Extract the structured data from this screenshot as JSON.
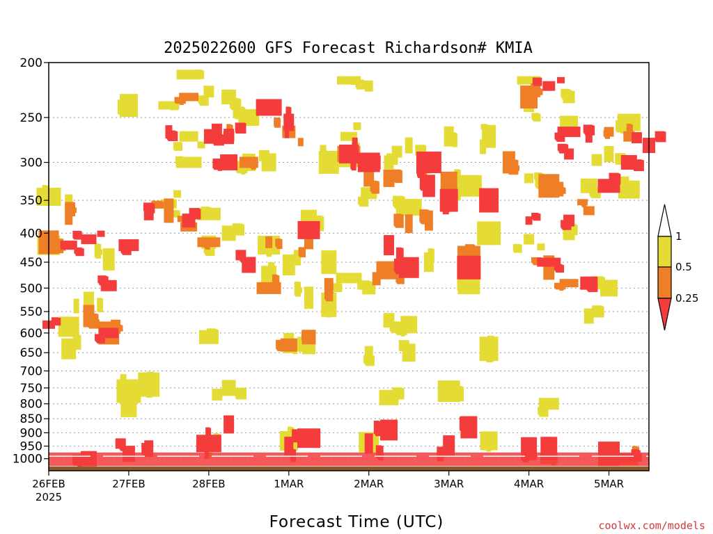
{
  "chart_data": {
    "type": "heatmap",
    "title": "2025022600 GFS Forecast Richardson# KMIA",
    "xlabel": "Forecast Time (UTC)",
    "ylabel": "",
    "credit": "coolwx.com/models",
    "y_axis": {
      "scale": "log",
      "reversed": true,
      "range": [
        200,
        1050
      ],
      "ticks": [
        200,
        250,
        300,
        350,
        400,
        450,
        500,
        550,
        600,
        650,
        700,
        750,
        800,
        850,
        900,
        950,
        1000
      ],
      "grid": true
    },
    "x_axis": {
      "range": [
        "2025-02-26T00",
        "2025-03-05T12"
      ],
      "ticks": [
        "26FEB",
        "27FEB",
        "28FEB",
        "1MAR",
        "2MAR",
        "3MAR",
        "4MAR",
        "5MAR"
      ],
      "first_tick_sub": "2025"
    },
    "legend": {
      "placement": "right",
      "labels": [
        "1",
        "0.5",
        "0.25"
      ],
      "colors": {
        "below_0.25": "#f43c3c",
        "0.25_to_0.5": "#ee7f26",
        "0.5_to_1": "#e4dc34",
        "above_1": "#ffffff"
      }
    },
    "ground_color": "#8b5a2b",
    "series": [
      {
        "name": "Ri 0.5-1",
        "color": "#e4dc34",
        "points": [
          [
            "2025-02-26T00",
            345
          ],
          [
            "2025-02-26T06",
            355
          ],
          [
            "2025-02-26T00",
            420
          ],
          [
            "2025-02-26T06",
            585
          ],
          [
            "2025-02-26T06",
            640
          ],
          [
            "2025-02-26T12",
            530
          ],
          [
            "2025-02-26T18",
            445
          ],
          [
            "2025-02-27T00",
            238
          ],
          [
            "2025-02-27T00",
            760
          ],
          [
            "2025-02-27T00",
            805
          ],
          [
            "2025-02-27T06",
            740
          ],
          [
            "2025-02-27T12",
            238
          ],
          [
            "2025-02-27T12",
            355
          ],
          [
            "2025-02-27T18",
            210
          ],
          [
            "2025-02-27T18",
            270
          ],
          [
            "2025-02-27T18",
            300
          ],
          [
            "2025-02-28T00",
            225
          ],
          [
            "2025-02-28T00",
            370
          ],
          [
            "2025-02-28T00",
            415
          ],
          [
            "2025-02-28T00",
            610
          ],
          [
            "2025-02-28T06",
            230
          ],
          [
            "2025-02-28T06",
            400
          ],
          [
            "2025-02-28T06",
            750
          ],
          [
            "2025-02-28T12",
            250
          ],
          [
            "2025-02-28T12",
            300
          ],
          [
            "2025-02-28T18",
            300
          ],
          [
            "2025-02-28T18",
            420
          ],
          [
            "2025-02-28T18",
            475
          ],
          [
            "2025-03-01T00",
            625
          ],
          [
            "2025-03-01T00",
            455
          ],
          [
            "2025-03-01T06",
            380
          ],
          [
            "2025-03-01T06",
            520
          ],
          [
            "2025-03-01T06",
            625
          ],
          [
            "2025-03-01T12",
            300
          ],
          [
            "2025-03-01T12",
            450
          ],
          [
            "2025-03-01T12",
            535
          ],
          [
            "2025-03-01T18",
            215
          ],
          [
            "2025-03-01T18",
            270
          ],
          [
            "2025-03-01T18",
            300
          ],
          [
            "2025-03-01T18",
            480
          ],
          [
            "2025-03-02T00",
            220
          ],
          [
            "2025-03-02T00",
            340
          ],
          [
            "2025-03-02T00",
            500
          ],
          [
            "2025-03-02T00",
            650
          ],
          [
            "2025-03-02T06",
            300
          ],
          [
            "2025-03-02T06",
            570
          ],
          [
            "2025-03-02T06",
            780
          ],
          [
            "2025-03-02T12",
            280
          ],
          [
            "2025-03-02T12",
            360
          ],
          [
            "2025-03-02T12",
            580
          ],
          [
            "2025-03-02T12",
            650
          ],
          [
            "2025-03-02T18",
            300
          ],
          [
            "2025-03-02T18",
            450
          ],
          [
            "2025-03-03T00",
            270
          ],
          [
            "2025-03-03T00",
            350
          ],
          [
            "2025-03-03T00",
            760
          ],
          [
            "2025-03-03T06",
            330
          ],
          [
            "2025-03-03T06",
            490
          ],
          [
            "2025-03-03T12",
            270
          ],
          [
            "2025-03-03T12",
            400
          ],
          [
            "2025-03-03T12",
            640
          ],
          [
            "2025-03-04T00",
            215
          ],
          [
            "2025-03-04T00",
            240
          ],
          [
            "2025-03-04T00",
            320
          ],
          [
            "2025-03-04T00",
            410
          ],
          [
            "2025-03-04T06",
            330
          ],
          [
            "2025-03-04T06",
            800
          ],
          [
            "2025-03-04T12",
            230
          ],
          [
            "2025-03-04T12",
            255
          ],
          [
            "2025-03-04T12",
            400
          ],
          [
            "2025-03-04T18",
            330
          ],
          [
            "2025-03-04T18",
            560
          ],
          [
            "2025-03-05T00",
            290
          ],
          [
            "2025-03-05T00",
            500
          ],
          [
            "2025-03-05T06",
            255
          ],
          [
            "2025-03-05T06",
            335
          ],
          [
            "2025-03-03T12",
            930
          ],
          [
            "2025-03-01T00",
            930
          ],
          [
            "2025-03-02T00",
            935
          ],
          [
            "2025-02-28T00",
            960
          ]
        ]
      },
      {
        "name": "Ri 0.25-0.5",
        "color": "#ee7f26",
        "points": [
          [
            "2025-02-26T06",
            370
          ],
          [
            "2025-02-26T12",
            560
          ],
          [
            "2025-02-26T18",
            600
          ],
          [
            "2025-02-26T00",
            415
          ],
          [
            "2025-02-27T12",
            365
          ],
          [
            "2025-02-27T18",
            230
          ],
          [
            "2025-02-27T18",
            390
          ],
          [
            "2025-02-28T00",
            415
          ],
          [
            "2025-02-28T06",
            270
          ],
          [
            "2025-02-28T12",
            300
          ],
          [
            "2025-02-28T18",
            500
          ],
          [
            "2025-02-28T18",
            415
          ],
          [
            "2025-03-01T00",
            265
          ],
          [
            "2025-03-01T00",
            630
          ],
          [
            "2025-03-01T06",
            415
          ],
          [
            "2025-03-01T06",
            610
          ],
          [
            "2025-03-01T12",
            495
          ],
          [
            "2025-03-01T18",
            290
          ],
          [
            "2025-03-02T00",
            320
          ],
          [
            "2025-03-02T06",
            320
          ],
          [
            "2025-03-02T06",
            465
          ],
          [
            "2025-03-02T12",
            385
          ],
          [
            "2025-03-02T18",
            300
          ],
          [
            "2025-03-02T18",
            380
          ],
          [
            "2025-03-03T00",
            325
          ],
          [
            "2025-03-03T06",
            440
          ],
          [
            "2025-03-03T18",
            300
          ],
          [
            "2025-03-04T00",
            230
          ],
          [
            "2025-03-04T06",
            330
          ],
          [
            "2025-03-04T06",
            460
          ],
          [
            "2025-03-04T12",
            490
          ],
          [
            "2025-03-04T18",
            365
          ],
          [
            "2025-03-05T00",
            265
          ],
          [
            "2025-03-05T06",
            270
          ],
          [
            "2025-03-04T06",
            1000
          ],
          [
            "2025-03-05T06",
            1005
          ]
        ]
      },
      {
        "name": "Ri <0.25",
        "color": "#f43c3c",
        "points": [
          [
            "2025-02-26T00",
            580
          ],
          [
            "2025-02-26T06",
            420
          ],
          [
            "2025-02-26T12",
            410
          ],
          [
            "2025-02-26T18",
            600
          ],
          [
            "2025-02-26T18",
            495
          ],
          [
            "2025-02-27T00",
            420
          ],
          [
            "2025-02-27T06",
            370
          ],
          [
            "2025-02-27T12",
            265
          ],
          [
            "2025-02-27T18",
            380
          ],
          [
            "2025-02-28T00",
            270
          ],
          [
            "2025-02-28T06",
            270
          ],
          [
            "2025-02-28T06",
            300
          ],
          [
            "2025-02-28T12",
            455
          ],
          [
            "2025-02-28T18",
            240
          ],
          [
            "2025-03-01T00",
            255
          ],
          [
            "2025-03-01T06",
            395
          ],
          [
            "2025-03-01T18",
            290
          ],
          [
            "2025-03-02T00",
            300
          ],
          [
            "2025-03-02T06",
            420
          ],
          [
            "2025-03-02T12",
            460
          ],
          [
            "2025-03-02T18",
            300
          ],
          [
            "2025-03-02T18",
            330
          ],
          [
            "2025-03-03T00",
            350
          ],
          [
            "2025-03-03T06",
            460
          ],
          [
            "2025-03-03T12",
            350
          ],
          [
            "2025-03-04T00",
            380
          ],
          [
            "2025-03-04T06",
            450
          ],
          [
            "2025-03-04T06",
            220
          ],
          [
            "2025-03-04T12",
            265
          ],
          [
            "2025-03-04T12",
            290
          ],
          [
            "2025-03-04T12",
            380
          ],
          [
            "2025-03-04T18",
            270
          ],
          [
            "2025-03-04T18",
            490
          ],
          [
            "2025-03-05T00",
            330
          ],
          [
            "2025-03-05T06",
            300
          ],
          [
            "2025-03-05T12",
            280
          ],
          [
            "2025-02-26T12",
            1000
          ],
          [
            "2025-02-27T00",
            980
          ],
          [
            "2025-02-27T06",
            960
          ],
          [
            "2025-02-28T00",
            940
          ],
          [
            "2025-02-28T06",
            870
          ],
          [
            "2025-03-01T00",
            950
          ],
          [
            "2025-03-01T06",
            920
          ],
          [
            "2025-03-02T00",
            940
          ],
          [
            "2025-03-02T06",
            890
          ],
          [
            "2025-03-03T00",
            950
          ],
          [
            "2025-03-03T06",
            880
          ],
          [
            "2025-03-04T00",
            960
          ],
          [
            "2025-03-04T06",
            960
          ],
          [
            "2025-03-05T00",
            980
          ],
          [
            "2025-03-05T06",
            995
          ]
        ]
      }
    ]
  }
}
